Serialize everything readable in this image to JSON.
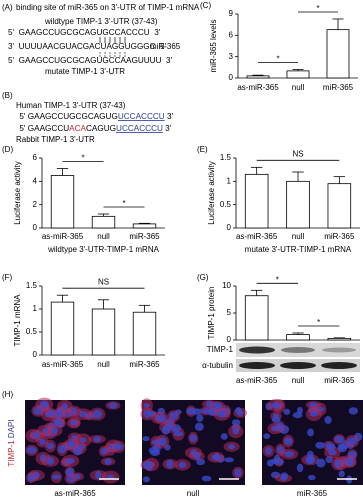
{
  "panel_a": {
    "label": "(A)",
    "title": "binding site of miR-365 on 3'-UTR of TIMP-1 mRNA",
    "wildtype_label": "wildtype TIMP-1 3'-UTR (37-43)",
    "wildtype_seq": "5'  GAAGCCUGCGCAGUGCCACCCU  3'",
    "mirna_seq": "3'  UUUUAACGUACGACUAGGUGGGC  5'",
    "mirna_name": "miR-365",
    "mutant_seq": "5'  GAAGCCUGCGCAGUGCCAAGUUUU  3'",
    "mutant_label": "mutate TIMP-1 3'-UTR"
  },
  "panel_b": {
    "label": "(B)",
    "human_label": "Human TIMP-1 3'-UTR (37-43)",
    "human_seq": [
      "5' GAAGCCUGCGCAGUG",
      "UCCACCCU",
      " 3'"
    ],
    "rabbit_seq": [
      "5' GAAGCCU",
      "ACA",
      "CAGUG",
      "UCCACCCU",
      " 3'"
    ],
    "rabbit_label": "Rabbit TIMP-1 3'-UTR"
  },
  "chart_data": [
    {
      "type": "bar",
      "label": "(C)",
      "y_label": "miR-365 levels",
      "categories": [
        "as-miR-365",
        "null",
        "miR-365"
      ],
      "values": [
        0.3,
        1.0,
        6.8
      ],
      "errors": [
        0.1,
        0.2,
        1.5
      ],
      "ylim": [
        0,
        9
      ],
      "yticks": [
        0,
        3,
        6,
        9
      ],
      "comparisons": [
        {
          "between": [
            0,
            1
          ],
          "label": "*"
        },
        {
          "between": [
            1,
            2
          ],
          "label": "*"
        }
      ]
    },
    {
      "type": "bar",
      "label": "(D)",
      "y_label": "Luciferase activity",
      "x_label": "wildtype 3'-UTR-TIMP-1 mRNA",
      "categories": [
        "as-miR-365",
        "null",
        "miR-365"
      ],
      "values": [
        4.5,
        1.0,
        0.35
      ],
      "errors": [
        0.6,
        0.2,
        0.05
      ],
      "ylim": [
        0,
        6
      ],
      "yticks": [
        0,
        2,
        4,
        6
      ],
      "comparisons": [
        {
          "between": [
            0,
            1
          ],
          "label": "*"
        },
        {
          "between": [
            1,
            2
          ],
          "label": "*"
        }
      ]
    },
    {
      "type": "bar",
      "label": "(E)",
      "y_label": "Luciferase activity",
      "x_label": "mutate 3'-UTR-TIMP-1 mRNA",
      "categories": [
        "as-miR-365",
        "null",
        "miR-365"
      ],
      "values": [
        1.15,
        1.0,
        0.95
      ],
      "errors": [
        0.15,
        0.2,
        0.15
      ],
      "ylim": [
        0,
        1.5
      ],
      "yticks": [
        0,
        0.5,
        1,
        1.5
      ],
      "comparisons": [
        {
          "between": [
            0,
            2
          ],
          "label": "NS"
        }
      ]
    },
    {
      "type": "bar",
      "label": "(F)",
      "y_label": "TIMP-1 mRNA",
      "categories": [
        "as-miR-365",
        "null",
        "miR-365"
      ],
      "values": [
        1.15,
        1.0,
        0.93
      ],
      "errors": [
        0.15,
        0.2,
        0.15
      ],
      "ylim": [
        0,
        1.5
      ],
      "yticks": [
        0,
        0.5,
        1,
        1.5
      ],
      "comparisons": [
        {
          "between": [
            0,
            2
          ],
          "label": "NS"
        }
      ]
    },
    {
      "type": "bar",
      "label": "(G)",
      "y_label": "TIMP-1 protein",
      "categories": [
        "as-miR-365",
        "null",
        "miR-365"
      ],
      "values": [
        8.2,
        1.0,
        0.3
      ],
      "errors": [
        1.0,
        0.3,
        0.1
      ],
      "ylim": [
        0,
        10
      ],
      "yticks": [
        0,
        5,
        10
      ],
      "blot_labels": [
        "TIMP-1",
        "α-tubulin"
      ],
      "comparisons": [
        {
          "between": [
            0,
            1
          ],
          "label": "*"
        },
        {
          "between": [
            1,
            2
          ],
          "label": "*"
        }
      ]
    }
  ],
  "panel_h": {
    "label": "(H)",
    "stain_labels": [
      "TIMP-1",
      "DAPI"
    ],
    "captions": [
      "as-miR-365",
      "null",
      "miR-365"
    ]
  }
}
